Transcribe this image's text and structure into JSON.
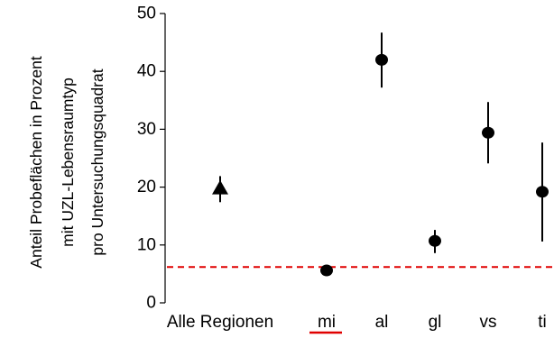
{
  "chart_data": {
    "type": "scatter",
    "title": "",
    "xlabel": "",
    "ylabel_lines": [
      "Anteil Probeflächen in Prozent",
      "mit UZL-Lebensraumtyp",
      "pro Untersuchungsquadrat"
    ],
    "categories": [
      "Alle Regionen",
      "mi",
      "al",
      "gl",
      "vs",
      "ti"
    ],
    "ylim": [
      0,
      50
    ],
    "yticks": [
      "0",
      "10",
      "20",
      "30",
      "40",
      "50"
    ],
    "series": [
      {
        "points": [
          {
            "category": "Alle Regionen",
            "value": 19.8,
            "lower": 17.4,
            "upper": 21.9,
            "marker": "triangle"
          },
          {
            "category": "mi",
            "value": 5.6,
            "lower": 4.9,
            "upper": 6.4,
            "marker": "circle"
          },
          {
            "category": "al",
            "value": 42.0,
            "lower": 37.2,
            "upper": 46.7,
            "marker": "circle"
          },
          {
            "category": "gl",
            "value": 10.7,
            "lower": 8.6,
            "upper": 12.6,
            "marker": "circle"
          },
          {
            "category": "vs",
            "value": 29.4,
            "lower": 24.1,
            "upper": 34.7,
            "marker": "circle"
          },
          {
            "category": "ti",
            "value": 19.2,
            "lower": 10.6,
            "upper": 27.7,
            "marker": "circle"
          }
        ]
      }
    ],
    "reference_line": {
      "value": 6.2,
      "style": "dashed",
      "color": "#e00000"
    },
    "highlighted_category": {
      "category": "mi",
      "underline_color": "#e00000"
    },
    "grid": false,
    "legend": "none"
  }
}
